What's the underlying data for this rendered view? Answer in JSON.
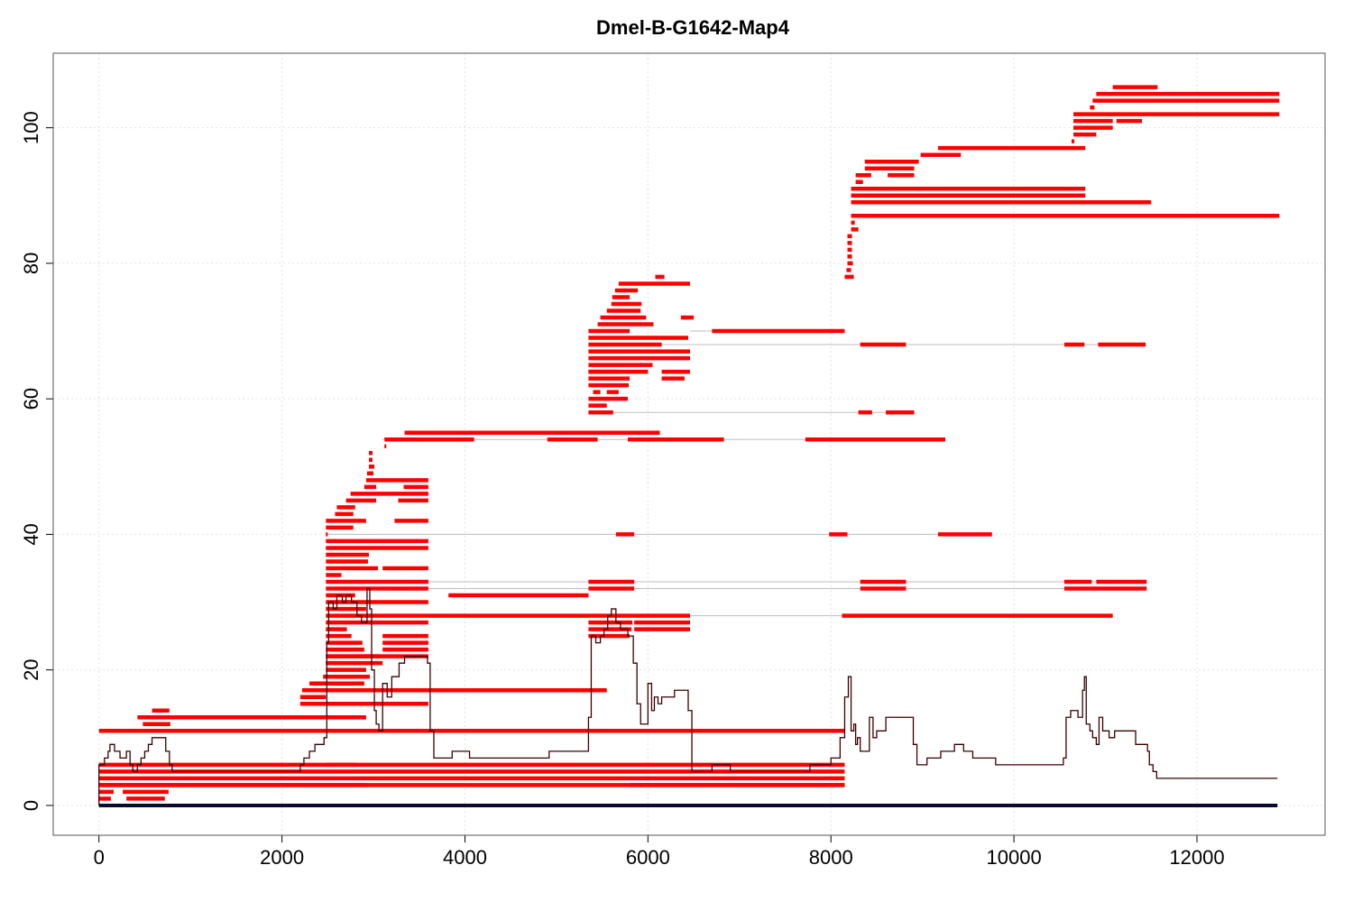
{
  "chart_data": {
    "type": "line",
    "title": "Dmel-B-G1642-Map4",
    "xlabel": "",
    "ylabel": "",
    "xlim": [
      -500,
      13400
    ],
    "ylim": [
      -4.4,
      111
    ],
    "x_ticks": [
      0,
      2000,
      4000,
      6000,
      8000,
      10000,
      12000
    ],
    "y_ticks": [
      0,
      20,
      40,
      60,
      80,
      100
    ],
    "grid": true,
    "colors": {
      "segments": "#ff0000",
      "coverage": "#3a0000",
      "baseline": "#0a0a30",
      "links": "#bdbdbd",
      "grid": "#e2e2e2"
    },
    "segments": [
      [
        0,
        130,
        1
      ],
      [
        300,
        720,
        1
      ],
      [
        0,
        160,
        2
      ],
      [
        260,
        760,
        2
      ],
      [
        0,
        8150,
        3
      ],
      [
        0,
        2930,
        3
      ],
      [
        5800,
        8150,
        3
      ],
      [
        0,
        8150,
        4
      ],
      [
        0,
        8150,
        5
      ],
      [
        0,
        8150,
        6
      ],
      [
        2480,
        2820,
        6
      ],
      [
        0,
        8150,
        11
      ],
      [
        160,
        8150,
        11
      ],
      [
        480,
        780,
        12
      ],
      [
        420,
        760,
        13
      ],
      [
        480,
        2920,
        13
      ],
      [
        580,
        770,
        14
      ],
      [
        2200,
        3600,
        15
      ],
      [
        2200,
        2480,
        16
      ],
      [
        2220,
        2500,
        17
      ],
      [
        2280,
        5550,
        17
      ],
      [
        2300,
        2900,
        18
      ],
      [
        2450,
        2520,
        19
      ],
      [
        2460,
        2960,
        19
      ],
      [
        2480,
        2920,
        20
      ],
      [
        2480,
        2520,
        21
      ],
      [
        2480,
        3100,
        21
      ],
      [
        2480,
        3600,
        22
      ],
      [
        2480,
        3080,
        22
      ],
      [
        2480,
        2900,
        23
      ],
      [
        3100,
        3600,
        23
      ],
      [
        2480,
        2880,
        24
      ],
      [
        3100,
        3600,
        24
      ],
      [
        2480,
        2760,
        25
      ],
      [
        3100,
        3600,
        25
      ],
      [
        5350,
        5800,
        25
      ],
      [
        2480,
        2710,
        26
      ],
      [
        5350,
        5820,
        26
      ],
      [
        5850,
        6460,
        26
      ],
      [
        2480,
        3600,
        27
      ],
      [
        5350,
        5830,
        27
      ],
      [
        5850,
        6460,
        27
      ],
      [
        2480,
        6460,
        28
      ],
      [
        8120,
        11080,
        28
      ],
      [
        2480,
        2920,
        29
      ],
      [
        2480,
        3600,
        30
      ],
      [
        2480,
        2800,
        31
      ],
      [
        3820,
        5350,
        31
      ],
      [
        2480,
        3600,
        32
      ],
      [
        5350,
        5850,
        32
      ],
      [
        8320,
        8820,
        32
      ],
      [
        10550,
        11450,
        32
      ],
      [
        2480,
        3600,
        33
      ],
      [
        5350,
        5850,
        33
      ],
      [
        8320,
        8820,
        33
      ],
      [
        10550,
        10850,
        33
      ],
      [
        10900,
        11450,
        33
      ],
      [
        2480,
        2650,
        34
      ],
      [
        2480,
        3050,
        35
      ],
      [
        3100,
        3600,
        35
      ],
      [
        2480,
        2940,
        36
      ],
      [
        2480,
        2950,
        37
      ],
      [
        2480,
        3600,
        38
      ],
      [
        2480,
        3600,
        39
      ],
      [
        2480,
        2500,
        40
      ],
      [
        5650,
        5850,
        40
      ],
      [
        7980,
        8180,
        40
      ],
      [
        9170,
        9760,
        40
      ],
      [
        2480,
        2780,
        41
      ],
      [
        2480,
        2920,
        42
      ],
      [
        3230,
        3600,
        42
      ],
      [
        2580,
        2780,
        43
      ],
      [
        2600,
        2800,
        44
      ],
      [
        2700,
        3030,
        45
      ],
      [
        3270,
        3600,
        45
      ],
      [
        2750,
        3600,
        46
      ],
      [
        2900,
        3030,
        47
      ],
      [
        3330,
        3600,
        47
      ],
      [
        2920,
        3600,
        48
      ],
      [
        2930,
        3000,
        49
      ],
      [
        2950,
        3010,
        50
      ],
      [
        2950,
        2990,
        51
      ],
      [
        2950,
        2990,
        52
      ],
      [
        3120,
        4100,
        54
      ],
      [
        3120,
        3140,
        53
      ],
      [
        4900,
        5450,
        54
      ],
      [
        5780,
        6830,
        54
      ],
      [
        7720,
        9250,
        54
      ],
      [
        3340,
        6130,
        55
      ],
      [
        5350,
        5620,
        58
      ],
      [
        8300,
        8450,
        58
      ],
      [
        8600,
        8910,
        58
      ],
      [
        5350,
        5550,
        59
      ],
      [
        5350,
        5780,
        60
      ],
      [
        5400,
        5480,
        61
      ],
      [
        5550,
        5680,
        61
      ],
      [
        5350,
        5790,
        62
      ],
      [
        5350,
        5800,
        63
      ],
      [
        6150,
        6400,
        63
      ],
      [
        5350,
        6000,
        64
      ],
      [
        5350,
        5680,
        64
      ],
      [
        6150,
        6460,
        64
      ],
      [
        5350,
        6050,
        65
      ],
      [
        5350,
        6060,
        66
      ],
      [
        6050,
        6460,
        66
      ],
      [
        5350,
        6460,
        67
      ],
      [
        5350,
        6150,
        68
      ],
      [
        8320,
        8820,
        68
      ],
      [
        10550,
        10770,
        68
      ],
      [
        10920,
        11440,
        68
      ],
      [
        5350,
        6440,
        69
      ],
      [
        5350,
        5800,
        70
      ],
      [
        6700,
        8150,
        70
      ],
      [
        5450,
        6060,
        71
      ],
      [
        5480,
        5980,
        72
      ],
      [
        6360,
        6500,
        72
      ],
      [
        5550,
        5920,
        73
      ],
      [
        5600,
        5930,
        74
      ],
      [
        5610,
        5800,
        75
      ],
      [
        5640,
        5890,
        76
      ],
      [
        5680,
        6460,
        77
      ],
      [
        6080,
        6180,
        78
      ],
      [
        8150,
        8250,
        78
      ],
      [
        8170,
        8220,
        79
      ],
      [
        8180,
        8240,
        80
      ],
      [
        8180,
        8230,
        81
      ],
      [
        8180,
        8230,
        82
      ],
      [
        8180,
        8230,
        83
      ],
      [
        8180,
        8230,
        84
      ],
      [
        8220,
        8300,
        85
      ],
      [
        8220,
        8260,
        86
      ],
      [
        8220,
        12900,
        87
      ],
      [
        8220,
        11500,
        89
      ],
      [
        8220,
        10780,
        90
      ],
      [
        8220,
        10780,
        91
      ],
      [
        8270,
        8350,
        92
      ],
      [
        8270,
        8440,
        93
      ],
      [
        8620,
        8910,
        93
      ],
      [
        8370,
        8910,
        94
      ],
      [
        8370,
        8960,
        95
      ],
      [
        8980,
        9420,
        96
      ],
      [
        9170,
        10780,
        97
      ],
      [
        10630,
        10660,
        98
      ],
      [
        10650,
        10900,
        99
      ],
      [
        10650,
        11080,
        100
      ],
      [
        10650,
        11080,
        101
      ],
      [
        11120,
        11400,
        101
      ],
      [
        10650,
        12900,
        102
      ],
      [
        10830,
        10880,
        103
      ],
      [
        10860,
        12900,
        104
      ],
      [
        10900,
        12900,
        105
      ],
      [
        11080,
        11570,
        106
      ]
    ],
    "links": [
      [
        3100,
        8150,
        28
      ],
      [
        3600,
        10550,
        32
      ],
      [
        2480,
        11450,
        33
      ],
      [
        2480,
        9760,
        40
      ],
      [
        3100,
        9250,
        54
      ],
      [
        5350,
        8910,
        58
      ],
      [
        5350,
        11440,
        68
      ],
      [
        6460,
        8150,
        70
      ]
    ],
    "coverage_steps": [
      [
        0,
        0
      ],
      [
        0,
        6
      ],
      [
        60,
        7
      ],
      [
        100,
        8
      ],
      [
        120,
        9
      ],
      [
        170,
        8
      ],
      [
        230,
        7
      ],
      [
        300,
        8
      ],
      [
        340,
        6
      ],
      [
        370,
        5
      ],
      [
        420,
        6
      ],
      [
        460,
        7
      ],
      [
        500,
        8
      ],
      [
        540,
        9
      ],
      [
        580,
        10
      ],
      [
        730,
        8
      ],
      [
        770,
        6
      ],
      [
        800,
        5
      ],
      [
        1500,
        5
      ],
      [
        2200,
        6
      ],
      [
        2240,
        7
      ],
      [
        2300,
        8
      ],
      [
        2360,
        9
      ],
      [
        2460,
        10
      ],
      [
        2490,
        24
      ],
      [
        2510,
        30
      ],
      [
        2560,
        29
      ],
      [
        2600,
        31
      ],
      [
        2660,
        30
      ],
      [
        2700,
        31
      ],
      [
        2760,
        30
      ],
      [
        2820,
        28
      ],
      [
        2870,
        27
      ],
      [
        2930,
        32
      ],
      [
        2960,
        29
      ],
      [
        2980,
        20
      ],
      [
        3010,
        14
      ],
      [
        3030,
        12
      ],
      [
        3060,
        11
      ],
      [
        3100,
        18
      ],
      [
        3150,
        16
      ],
      [
        3200,
        19
      ],
      [
        3280,
        21
      ],
      [
        3340,
        22
      ],
      [
        3520,
        22
      ],
      [
        3590,
        21
      ],
      [
        3620,
        11
      ],
      [
        3660,
        7
      ],
      [
        3860,
        8
      ],
      [
        4050,
        7
      ],
      [
        4500,
        7
      ],
      [
        4920,
        8
      ],
      [
        5320,
        8
      ],
      [
        5350,
        13
      ],
      [
        5380,
        25
      ],
      [
        5430,
        24
      ],
      [
        5480,
        25
      ],
      [
        5520,
        26
      ],
      [
        5560,
        28
      ],
      [
        5600,
        29
      ],
      [
        5650,
        27
      ],
      [
        5700,
        26
      ],
      [
        5780,
        25
      ],
      [
        5840,
        21
      ],
      [
        5880,
        15
      ],
      [
        5920,
        12
      ],
      [
        6000,
        18
      ],
      [
        6040,
        14
      ],
      [
        6070,
        16
      ],
      [
        6110,
        15
      ],
      [
        6150,
        16
      ],
      [
        6200,
        16
      ],
      [
        6290,
        17
      ],
      [
        6440,
        14
      ],
      [
        6480,
        5
      ],
      [
        6700,
        6
      ],
      [
        6900,
        5
      ],
      [
        7500,
        5
      ],
      [
        7770,
        6
      ],
      [
        8000,
        7
      ],
      [
        8100,
        10
      ],
      [
        8150,
        16
      ],
      [
        8190,
        19
      ],
      [
        8220,
        11
      ],
      [
        8250,
        12
      ],
      [
        8270,
        9
      ],
      [
        8290,
        10
      ],
      [
        8320,
        8
      ],
      [
        8420,
        13
      ],
      [
        8460,
        10
      ],
      [
        8500,
        11
      ],
      [
        8600,
        13
      ],
      [
        8900,
        9
      ],
      [
        8940,
        6
      ],
      [
        9050,
        7
      ],
      [
        9200,
        8
      ],
      [
        9350,
        9
      ],
      [
        9450,
        8
      ],
      [
        9550,
        7
      ],
      [
        9800,
        6
      ],
      [
        10500,
        6
      ],
      [
        10540,
        7
      ],
      [
        10570,
        13
      ],
      [
        10620,
        14
      ],
      [
        10700,
        13
      ],
      [
        10750,
        17
      ],
      [
        10770,
        19
      ],
      [
        10790,
        12
      ],
      [
        10830,
        11
      ],
      [
        10860,
        10
      ],
      [
        10900,
        9
      ],
      [
        10930,
        13
      ],
      [
        10970,
        11
      ],
      [
        11000,
        11
      ],
      [
        11040,
        10
      ],
      [
        11100,
        11
      ],
      [
        11250,
        11
      ],
      [
        11330,
        9
      ],
      [
        11460,
        8
      ],
      [
        11480,
        6
      ],
      [
        11520,
        5
      ],
      [
        11560,
        4
      ],
      [
        12880,
        4
      ]
    ]
  }
}
